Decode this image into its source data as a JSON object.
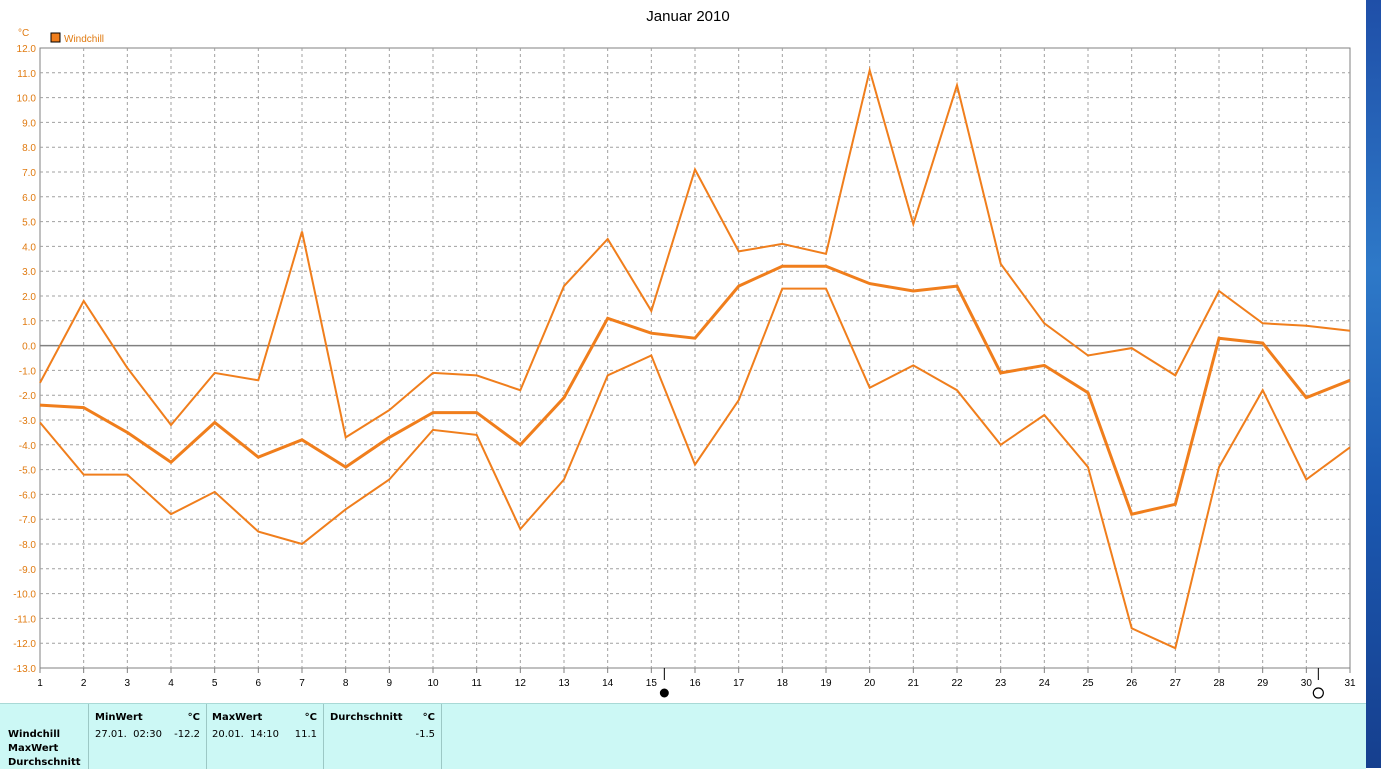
{
  "chart_data": {
    "type": "line",
    "title": "Januar 2010",
    "ylabel": "°C",
    "legend": {
      "label": "Windchill",
      "placement": "top-left",
      "color": "#f07e1c"
    },
    "ylim": [
      -13,
      12
    ],
    "xlim": [
      1,
      31
    ],
    "y_ticks": [
      "12.0",
      "11.0",
      "10.0",
      "9.0",
      "8.0",
      "7.0",
      "6.0",
      "5.0",
      "4.0",
      "3.0",
      "2.0",
      "1.0",
      "0.0",
      "-1.0",
      "-2.0",
      "-3.0",
      "-4.0",
      "-5.0",
      "-6.0",
      "-7.0",
      "-8.0",
      "-9.0",
      "-10.0",
      "-11.0",
      "-12.0",
      "-13.0"
    ],
    "x_ticks": [
      "1",
      "2",
      "3",
      "4",
      "5",
      "6",
      "7",
      "8",
      "9",
      "10",
      "11",
      "12",
      "13",
      "14",
      "15",
      "16",
      "17",
      "18",
      "19",
      "20",
      "21",
      "22",
      "23",
      "24",
      "25",
      "26",
      "27",
      "28",
      "29",
      "30",
      "31"
    ],
    "grid": true,
    "series": [
      {
        "role": "max",
        "color": "#f07e1c",
        "x": [
          1,
          2,
          3,
          4,
          5,
          6,
          7,
          8,
          9,
          10,
          11,
          12,
          13,
          14,
          15,
          16,
          17,
          18,
          19,
          20,
          21,
          22,
          23,
          24,
          25,
          26,
          27,
          28,
          29,
          30,
          31
        ],
        "values": [
          -1.5,
          1.8,
          -0.9,
          -3.2,
          -1.1,
          -1.4,
          4.6,
          -3.7,
          -2.6,
          -1.1,
          -1.2,
          -1.8,
          2.4,
          4.3,
          1.4,
          7.1,
          3.8,
          4.1,
          3.7,
          11.1,
          4.9,
          10.5,
          3.3,
          0.9,
          -0.4,
          -0.1,
          -1.2,
          2.2,
          0.9,
          0.8,
          0.6
        ]
      },
      {
        "role": "avg",
        "color": "#f07e1c",
        "x": [
          1,
          2,
          3,
          4,
          5,
          6,
          7,
          8,
          9,
          10,
          11,
          12,
          13,
          14,
          15,
          16,
          17,
          18,
          19,
          20,
          21,
          22,
          23,
          24,
          25,
          26,
          27,
          28,
          29,
          30,
          31
        ],
        "values": [
          -2.4,
          -2.5,
          -3.5,
          -4.7,
          -3.1,
          -4.5,
          -3.8,
          -4.9,
          -3.7,
          -2.7,
          -2.7,
          -4.0,
          -2.1,
          1.1,
          0.5,
          0.3,
          2.4,
          3.2,
          3.2,
          2.5,
          2.2,
          2.4,
          -1.1,
          -0.8,
          -1.9,
          -6.8,
          -6.4,
          0.3,
          0.1,
          -2.1,
          -1.4
        ]
      },
      {
        "role": "min",
        "color": "#f07e1c",
        "x": [
          1,
          2,
          3,
          4,
          5,
          6,
          7,
          8,
          9,
          10,
          11,
          12,
          13,
          14,
          15,
          16,
          17,
          18,
          19,
          20,
          21,
          22,
          23,
          24,
          25,
          26,
          27,
          28,
          29,
          30,
          31
        ],
        "values": [
          -3.1,
          -5.2,
          -5.2,
          -6.8,
          -5.9,
          -7.5,
          -8.0,
          -6.6,
          -5.4,
          -3.4,
          -3.6,
          -7.4,
          -5.4,
          -1.2,
          -0.4,
          -4.8,
          -2.2,
          2.3,
          2.3,
          -1.7,
          -0.8,
          -1.8,
          -4.0,
          -2.8,
          -4.9,
          -11.4,
          -12.2,
          -4.9,
          -1.8,
          -5.4,
          -4.1
        ]
      }
    ],
    "markers": {
      "new_moon_day": 15,
      "full_moon_day": 30
    }
  },
  "stats": {
    "rows": [
      "Windchill",
      "MaxWert",
      "Durchschnitt"
    ],
    "columns": [
      {
        "header": "MinWert",
        "unit": "°C",
        "date": "27.01.  02:30",
        "value": "-12.2"
      },
      {
        "header": "MaxWert",
        "unit": "°C",
        "date": "20.01.  14:10",
        "value": "11.1"
      },
      {
        "header": "Durchschnitt",
        "unit": "°C",
        "date": "",
        "value": "-1.5"
      }
    ]
  }
}
